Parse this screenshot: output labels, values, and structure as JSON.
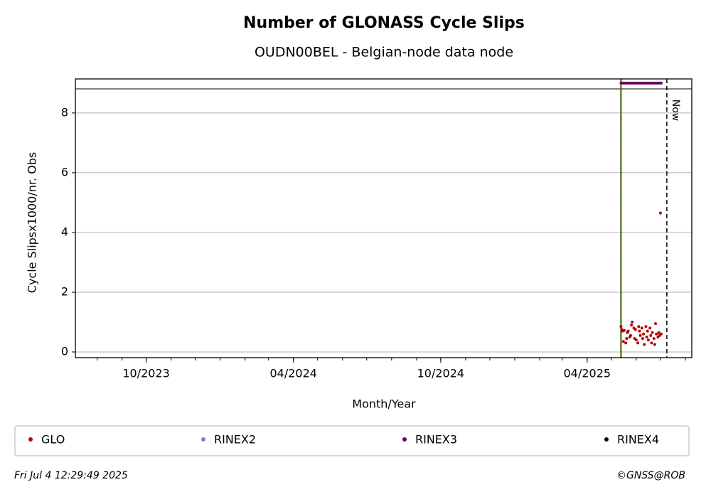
{
  "chart_data": {
    "type": "scatter",
    "title": "Number of GLONASS Cycle Slips",
    "subtitle": "OUDN00BEL - Belgian-node data node",
    "xlabel": "Month/Year",
    "ylabel": "Cycle Slipsx1000/nr. Obs",
    "xlim": [
      "2023-07-05",
      "2025-08-09"
    ],
    "xticks": [
      {
        "value": "2023-10",
        "label": "10/2023"
      },
      {
        "value": "2024-04",
        "label": "04/2024"
      },
      {
        "value": "2024-10",
        "label": "10/2024"
      },
      {
        "value": "2025-04",
        "label": "04/2025"
      }
    ],
    "ylim": [
      -0.19,
      9.14
    ],
    "yticks": [
      0,
      2,
      4,
      6,
      8
    ],
    "grid": true,
    "start_line": {
      "x": "2025-05-13",
      "color": "#008000"
    },
    "now_line": {
      "x": "2025-07-09",
      "label": "Now"
    },
    "series": [
      {
        "name": "GLO",
        "color": "#bb0000",
        "x": [
          "2025-05-13",
          "2025-05-14",
          "2025-05-15",
          "2025-05-16",
          "2025-05-17",
          "2025-05-19",
          "2025-05-20",
          "2025-05-21",
          "2025-05-22",
          "2025-05-24",
          "2025-05-25",
          "2025-05-26",
          "2025-05-27",
          "2025-05-29",
          "2025-05-30",
          "2025-05-31",
          "2025-06-01",
          "2025-06-03",
          "2025-06-04",
          "2025-06-05",
          "2025-06-06",
          "2025-06-08",
          "2025-06-09",
          "2025-06-10",
          "2025-06-11",
          "2025-06-13",
          "2025-06-14",
          "2025-06-15",
          "2025-06-16",
          "2025-06-18",
          "2025-06-19",
          "2025-06-20",
          "2025-06-21",
          "2025-06-23",
          "2025-06-24",
          "2025-06-25",
          "2025-06-26",
          "2025-06-28",
          "2025-06-29",
          "2025-06-30",
          "2025-07-01",
          "2025-07-02"
        ],
        "values": [
          0.85,
          0.75,
          0.7,
          0.35,
          0.72,
          0.3,
          0.45,
          0.65,
          0.7,
          0.5,
          0.55,
          0.9,
          1.0,
          0.8,
          0.45,
          0.75,
          0.4,
          0.3,
          0.85,
          0.7,
          0.55,
          0.8,
          0.45,
          0.6,
          0.25,
          0.85,
          0.5,
          0.7,
          0.4,
          0.8,
          0.55,
          0.3,
          0.65,
          0.45,
          0.25,
          0.95,
          0.6,
          0.5,
          0.65,
          0.55,
          4.65,
          0.6
        ]
      },
      {
        "name": "RINEX2",
        "color": "#7f7fbf",
        "x": [],
        "values": []
      },
      {
        "name": "RINEX3",
        "color": "#660066",
        "x": [
          "2025-05-13",
          "2025-05-15",
          "2025-05-17",
          "2025-05-19",
          "2025-05-21",
          "2025-05-23",
          "2025-05-25",
          "2025-05-27",
          "2025-05-29",
          "2025-05-31",
          "2025-06-02",
          "2025-06-04",
          "2025-06-06",
          "2025-06-08",
          "2025-06-10",
          "2025-06-12",
          "2025-06-14",
          "2025-06-16",
          "2025-06-18",
          "2025-06-20",
          "2025-06-22",
          "2025-06-24",
          "2025-06-26",
          "2025-06-28",
          "2025-06-30",
          "2025-07-02"
        ],
        "values": [
          9,
          9,
          9,
          9,
          9,
          9,
          9,
          9,
          9,
          9,
          9,
          9,
          9,
          9,
          9,
          9,
          9,
          9,
          9,
          9,
          9,
          9,
          9,
          9,
          9,
          9
        ]
      },
      {
        "name": "RINEX4",
        "color": "#110022",
        "x": [],
        "values": []
      }
    ],
    "footer_left": "Fri Jul  4 12:29:49 2025",
    "footer_right": "©GNSS@ROB"
  }
}
